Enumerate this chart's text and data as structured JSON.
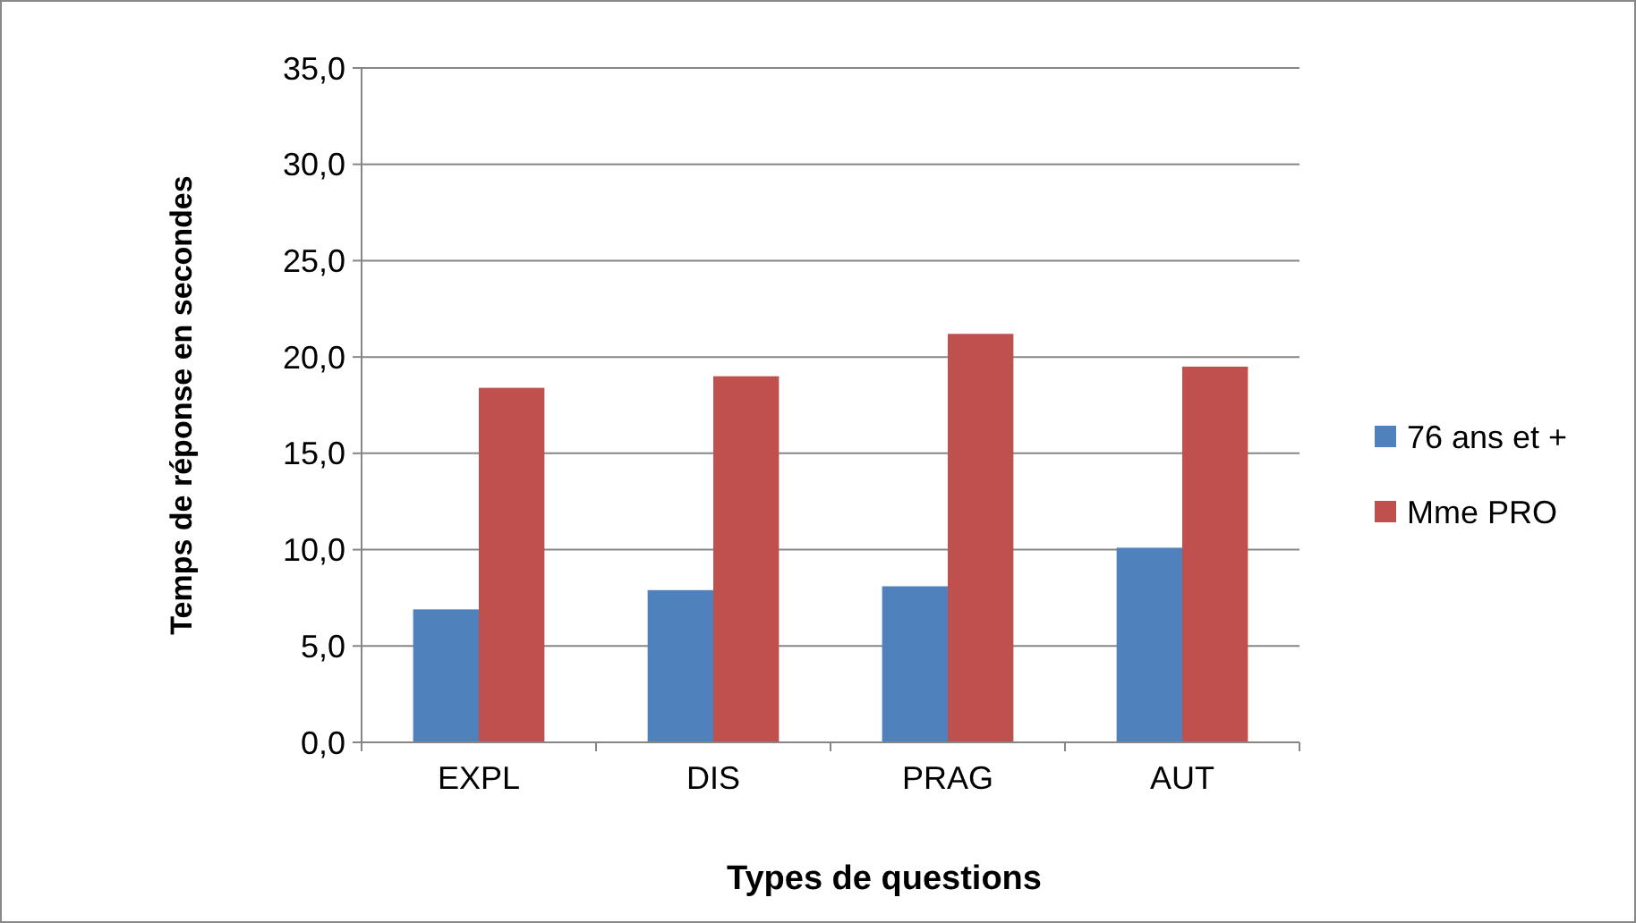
{
  "chart_data": {
    "type": "bar",
    "xlabel": "Types de questions",
    "ylabel": "Temps de réponse en secondes",
    "categories": [
      "EXPL",
      "DIS",
      "PRAG",
      "AUT"
    ],
    "series": [
      {
        "name": "76 ans et +",
        "color": "#4f81bd",
        "values": [
          6.9,
          7.9,
          8.1,
          10.1
        ]
      },
      {
        "name": "Mme PRO",
        "color": "#c0504d",
        "values": [
          18.4,
          19.0,
          21.2,
          19.5
        ]
      }
    ],
    "ylim": [
      0,
      35
    ],
    "yticks": [
      {
        "value": 0,
        "label": "0,0"
      },
      {
        "value": 5,
        "label": "5,0"
      },
      {
        "value": 10,
        "label": "10,0"
      },
      {
        "value": 15,
        "label": "15,0"
      },
      {
        "value": 20,
        "label": "20,0"
      },
      {
        "value": 25,
        "label": "25,0"
      },
      {
        "value": 30,
        "label": "30,0"
      },
      {
        "value": 35,
        "label": "35,0"
      }
    ],
    "grid": "y",
    "legend": "right"
  }
}
